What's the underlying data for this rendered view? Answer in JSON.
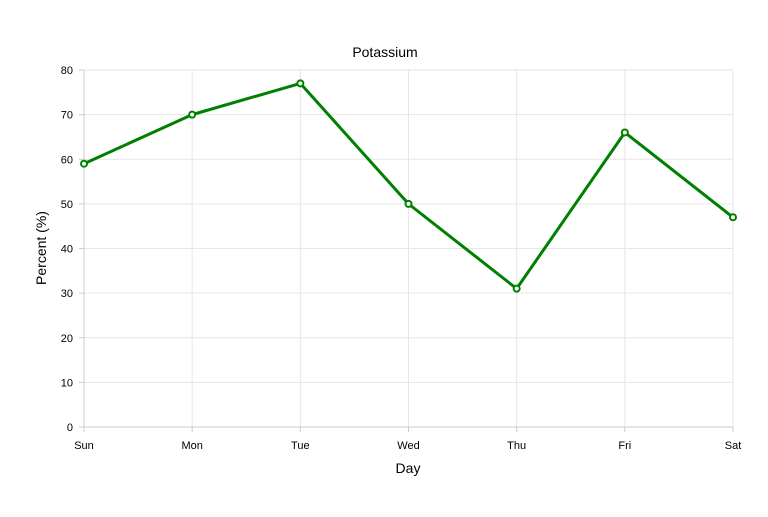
{
  "chart_data": {
    "type": "line",
    "title": "Potassium",
    "xlabel": "Day",
    "ylabel": "Percent (%)",
    "categories": [
      "Sun",
      "Mon",
      "Tue",
      "Wed",
      "Thu",
      "Fri",
      "Sat"
    ],
    "series": [
      {
        "values": [
          59,
          70,
          77,
          50,
          31,
          66,
          47
        ],
        "color": "#008000"
      }
    ],
    "ylim": [
      0,
      80
    ],
    "yticks": [
      0,
      10,
      20,
      30,
      40,
      50,
      60,
      70,
      80
    ],
    "grid": true,
    "legend": "none"
  }
}
